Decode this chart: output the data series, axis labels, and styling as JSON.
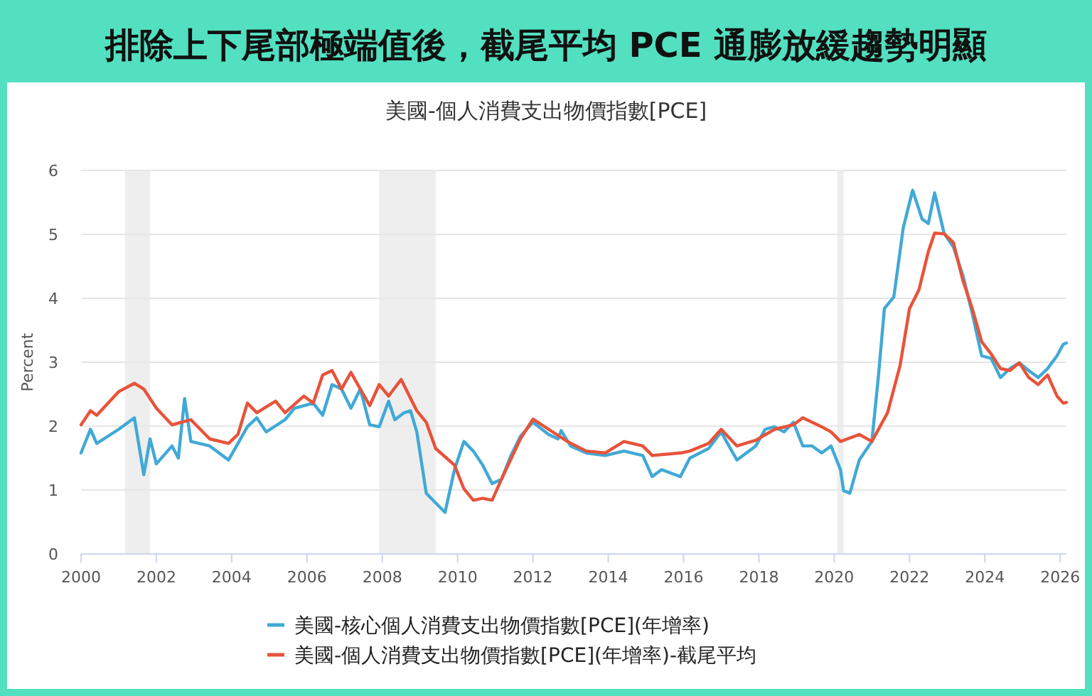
{
  "chart_data": {
    "type": "line",
    "title": "排除上下尾部極端值後，截尾平均 PCE 通膨放緩趨勢明顯",
    "subtitle": "美國-個人消費支出物價指數[PCE]",
    "ylabel": "Percent",
    "xlim": [
      "2000-01",
      "2026-03"
    ],
    "xticks": [
      "2000",
      "2002",
      "2004",
      "2006",
      "2008",
      "2010",
      "2012",
      "2014",
      "2016",
      "2018",
      "2020",
      "2022",
      "2024",
      "2026"
    ],
    "ylim": [
      0,
      6
    ],
    "yticks": [
      0,
      1,
      2,
      3,
      4,
      5,
      6
    ],
    "grid": "y",
    "legend": "bottom",
    "marker": "none",
    "line_style": "solid",
    "bands": [
      {
        "axis": "x",
        "from": "2001-03",
        "to": "2001-11",
        "color": "#eeeeee"
      },
      {
        "axis": "x",
        "from": "2007-12",
        "to": "2009-06",
        "color": "#eeeeee"
      },
      {
        "axis": "x",
        "from": "2020-02",
        "to": "2020-04",
        "color": "#eeeeee"
      }
    ],
    "series": [
      {
        "name": "美國-核心個人消費支出物價指數[PCE](年增率)",
        "color": "#41a9d6",
        "x": [
          "2000-01",
          "2000-04",
          "2000-06",
          "2001-01",
          "2001-06",
          "2001-09",
          "2001-11",
          "2002-01",
          "2002-06",
          "2002-08",
          "2002-10",
          "2002-12",
          "2003-06",
          "2003-12",
          "2004-03",
          "2004-06",
          "2004-09",
          "2004-12",
          "2005-06",
          "2005-09",
          "2006-03",
          "2006-06",
          "2006-09",
          "2006-12",
          "2007-03",
          "2007-06",
          "2007-09",
          "2007-12",
          "2008-03",
          "2008-05",
          "2008-08",
          "2008-10",
          "2008-12",
          "2009-03",
          "2009-06",
          "2009-09",
          "2009-12",
          "2010-03",
          "2010-06",
          "2010-09",
          "2010-12",
          "2011-03",
          "2011-06",
          "2011-09",
          "2012-01",
          "2012-06",
          "2012-09",
          "2012-10",
          "2013-01",
          "2013-06",
          "2013-12",
          "2014-06",
          "2014-12",
          "2015-03",
          "2015-06",
          "2015-12",
          "2016-03",
          "2016-09",
          "2017-01",
          "2017-03",
          "2017-06",
          "2017-12",
          "2018-03",
          "2018-06",
          "2018-09",
          "2018-12",
          "2019-03",
          "2019-06",
          "2019-09",
          "2019-12",
          "2020-03",
          "2020-04",
          "2020-06",
          "2020-09",
          "2021-01",
          "2021-03",
          "2021-05",
          "2021-08",
          "2021-11",
          "2022-02",
          "2022-05",
          "2022-07",
          "2022-09",
          "2022-12",
          "2023-03",
          "2023-06",
          "2023-09",
          "2023-12",
          "2024-03",
          "2024-06",
          "2024-09",
          "2024-12",
          "2025-03",
          "2025-06",
          "2025-09",
          "2025-12",
          "2026-02",
          "2026-03"
        ],
        "values": [
          1.58,
          1.95,
          1.73,
          1.95,
          2.13,
          1.24,
          1.8,
          1.41,
          1.69,
          1.5,
          2.43,
          1.76,
          1.69,
          1.47,
          1.73,
          1.99,
          2.13,
          1.91,
          2.1,
          2.28,
          2.36,
          2.17,
          2.65,
          2.58,
          2.28,
          2.58,
          2.02,
          1.99,
          2.39,
          2.1,
          2.21,
          2.24,
          1.91,
          0.95,
          0.8,
          0.65,
          1.32,
          1.76,
          1.61,
          1.39,
          1.1,
          1.17,
          1.54,
          1.84,
          2.06,
          1.87,
          1.8,
          1.93,
          1.69,
          1.58,
          1.54,
          1.61,
          1.54,
          1.21,
          1.32,
          1.21,
          1.5,
          1.65,
          1.91,
          1.73,
          1.47,
          1.69,
          1.95,
          1.99,
          1.91,
          2.06,
          1.69,
          1.69,
          1.58,
          1.69,
          1.32,
          0.99,
          0.95,
          1.47,
          1.76,
          2.73,
          3.84,
          4.02,
          5.1,
          5.69,
          5.24,
          5.17,
          5.65,
          5.02,
          4.8,
          4.36,
          3.76,
          3.1,
          3.06,
          2.76,
          2.9,
          2.99,
          2.87,
          2.76,
          2.9,
          3.1,
          3.28,
          3.3
        ]
      },
      {
        "name": "美國-個人消費支出物價指數[PCE](年增率)-截尾平均",
        "color": "#e8533a",
        "x": [
          "2000-01",
          "2000-04",
          "2000-06",
          "2001-01",
          "2001-06",
          "2001-09",
          "2002-01",
          "2002-06",
          "2002-12",
          "2003-06",
          "2003-12",
          "2004-03",
          "2004-06",
          "2004-09",
          "2005-03",
          "2005-06",
          "2005-12",
          "2006-03",
          "2006-06",
          "2006-09",
          "2006-12",
          "2007-03",
          "2007-09",
          "2007-12",
          "2008-03",
          "2008-07",
          "2008-12",
          "2009-03",
          "2009-06",
          "2009-12",
          "2010-03",
          "2010-06",
          "2010-09",
          "2010-12",
          "2011-03",
          "2011-09",
          "2012-01",
          "2012-06",
          "2012-12",
          "2013-06",
          "2013-12",
          "2014-06",
          "2014-12",
          "2015-03",
          "2015-12",
          "2016-03",
          "2016-09",
          "2017-01",
          "2017-06",
          "2017-12",
          "2018-06",
          "2018-12",
          "2019-03",
          "2019-09",
          "2019-12",
          "2020-03",
          "2020-09",
          "2021-01",
          "2021-06",
          "2021-10",
          "2022-01",
          "2022-04",
          "2022-07",
          "2022-09",
          "2022-12",
          "2023-03",
          "2023-06",
          "2023-09",
          "2023-12",
          "2024-03",
          "2024-06",
          "2024-09",
          "2024-12",
          "2025-03",
          "2025-06",
          "2025-09",
          "2025-12",
          "2026-02",
          "2026-03"
        ],
        "values": [
          2.02,
          2.24,
          2.17,
          2.54,
          2.67,
          2.58,
          2.28,
          2.02,
          2.1,
          1.8,
          1.73,
          1.87,
          2.36,
          2.21,
          2.39,
          2.21,
          2.47,
          2.36,
          2.8,
          2.87,
          2.58,
          2.84,
          2.32,
          2.65,
          2.47,
          2.73,
          2.24,
          2.06,
          1.65,
          1.39,
          1.02,
          0.84,
          0.87,
          0.84,
          1.17,
          1.8,
          2.11,
          1.95,
          1.76,
          1.61,
          1.58,
          1.76,
          1.69,
          1.54,
          1.58,
          1.61,
          1.73,
          1.95,
          1.69,
          1.78,
          1.95,
          2.02,
          2.13,
          1.99,
          1.91,
          1.76,
          1.87,
          1.76,
          2.21,
          2.95,
          3.84,
          4.13,
          4.73,
          5.02,
          5.01,
          4.87,
          4.28,
          3.84,
          3.32,
          3.13,
          2.9,
          2.87,
          2.99,
          2.76,
          2.65,
          2.8,
          2.47,
          2.36,
          2.37
        ]
      }
    ]
  }
}
